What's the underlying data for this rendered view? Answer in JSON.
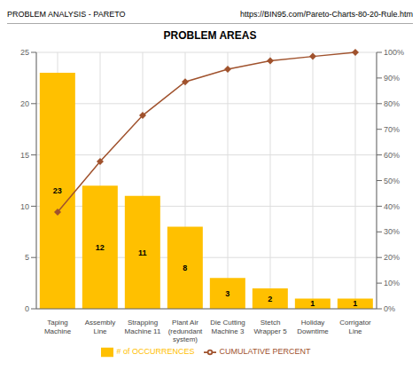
{
  "chart_data": {
    "type": "bar",
    "title": "PROBLEM AREAS",
    "annotations": [
      "PROBLEM ANALYSIS - PARETO",
      "https://BIN95.com/Pareto-Charts-80-20-Rule.htm"
    ],
    "categories": [
      "Taping\nMachine",
      "Assembly\nLine",
      "Strapping\nMachine 11",
      "Plant Air\n(redundant\nsystem)",
      "Die Cutting\nMachine 3",
      "Stetch\nWrapper 5",
      "Holiday\nDowntime",
      "Corrigator\nLine"
    ],
    "series": [
      {
        "name": "# of OCCURRENCES",
        "type": "bar",
        "color": "#FFC000",
        "values": [
          23,
          12,
          11,
          8,
          3,
          2,
          1,
          1
        ]
      },
      {
        "name": "CUMULATIVE PERCENT",
        "type": "line",
        "color": "#A0522D",
        "marker": "diamond",
        "axis": "y2",
        "values": [
          37.7,
          57.4,
          75.4,
          88.5,
          93.4,
          96.7,
          98.4,
          100.0
        ]
      }
    ],
    "ylim": [
      0,
      25
    ],
    "yticks": [
      0,
      5,
      10,
      15,
      20,
      25
    ],
    "y2lim": [
      0,
      100
    ],
    "y2ticks": [
      {
        "value": 0,
        "label": "0%"
      },
      {
        "value": 10,
        "label": "10%"
      },
      {
        "value": 20,
        "label": "20%"
      },
      {
        "value": 30,
        "label": "30%"
      },
      {
        "value": 40,
        "label": "40%"
      },
      {
        "value": 50,
        "label": "50%"
      },
      {
        "value": 60,
        "label": "60%"
      },
      {
        "value": 70,
        "label": "70%"
      },
      {
        "value": 80,
        "label": "80%"
      },
      {
        "value": 90,
        "label": "90%"
      },
      {
        "value": 100,
        "label": "100%"
      }
    ],
    "grid": true,
    "legend": "bottom",
    "data_labels": true
  }
}
